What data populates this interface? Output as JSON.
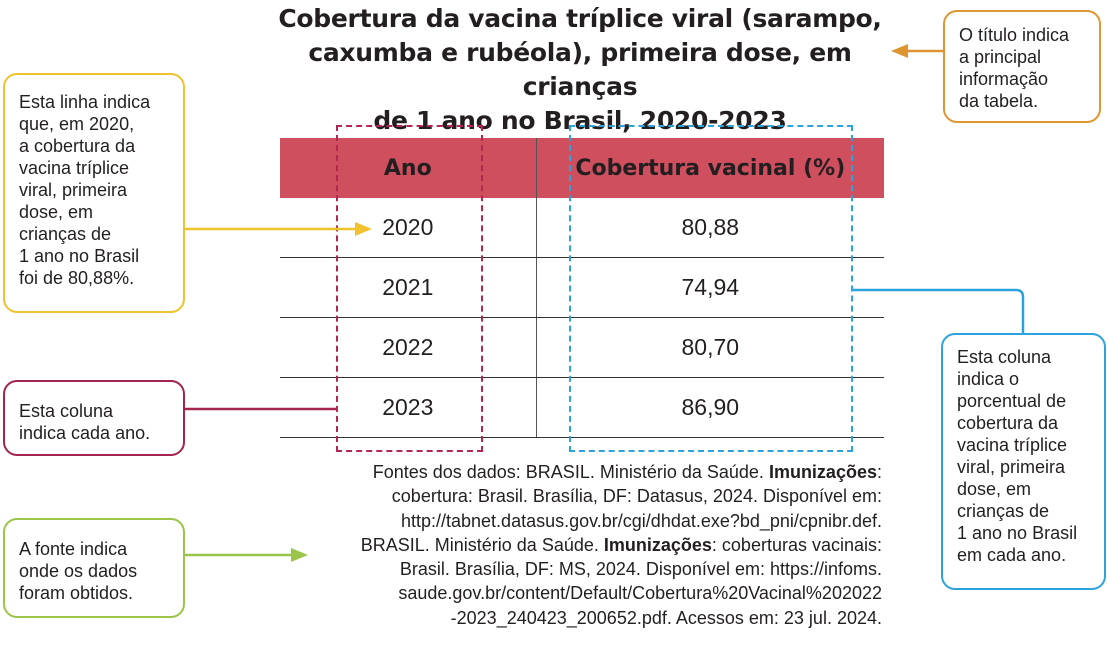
{
  "title": [
    "Cobertura da vacina tríplice viral (sarampo,",
    "caxumba e rubéola), primeira dose, em crianças",
    "de 1 ano no Brasil, 2020-2023"
  ],
  "table": {
    "headers": [
      "Ano",
      "Cobertura vacinal (%)"
    ],
    "rows": [
      [
        "2020",
        "80,88"
      ],
      [
        "2021",
        "74,94"
      ],
      [
        "2022",
        "80,70"
      ],
      [
        "2023",
        "86,90"
      ]
    ]
  },
  "callouts": {
    "linha": [
      "Esta linha indica",
      "que, em 2020,",
      "a cobertura da",
      "vacina tríplice",
      "viral, primeira",
      "dose, em",
      "crianças de",
      "1 ano no Brasil",
      "foi de 80,88%."
    ],
    "coluna_ano": [
      "Esta coluna",
      "indica cada ano."
    ],
    "fonte": [
      "A fonte indica",
      "onde os dados",
      "foram obtidos."
    ],
    "titulo": [
      "O título indica",
      "a principal",
      "informação",
      "da tabela."
    ],
    "coluna_cobertura": [
      "Esta coluna",
      "indica o",
      "porcentual de",
      "cobertura da",
      "vacina tríplice",
      "viral, primeira",
      "dose, em",
      "crianças de",
      "1 ano no Brasil",
      "em cada ano."
    ]
  },
  "source": {
    "line1_prefix": "Fontes dos dados: BRASIL. Ministério da Saúde. ",
    "line1_bold": "Imunizações",
    "line1_suffix": ":",
    "line2": "cobertura: Brasil. Brasília, DF: Datasus, 2024. Disponível em:",
    "line3": "http://tabnet.datasus.gov.br/cgi/dhdat.exe?bd_pni/cpnibr.def.",
    "line4_prefix": "BRASIL. Ministério da Saúde. ",
    "line4_bold": "Imunizações",
    "line4_suffix": ": coberturas vacinais:",
    "line5": "Brasil. Brasília, DF: MS, 2024. Disponível em: https://infoms.",
    "line6": "saude.gov.br/content/Default/Cobertura%20Vacinal%202022",
    "line7": "-2023_240423_200652.pdf. Acessos em: 23 jul. 2024."
  },
  "colors": {
    "header_bg": "#cf4f5e",
    "ano_highlight": "#b3264f",
    "cobertura_highlight": "#2ca3dc",
    "linha_callout": "#f0c22e",
    "fonte_callout": "#9bc44a",
    "titulo_callout": "#dd9630"
  }
}
